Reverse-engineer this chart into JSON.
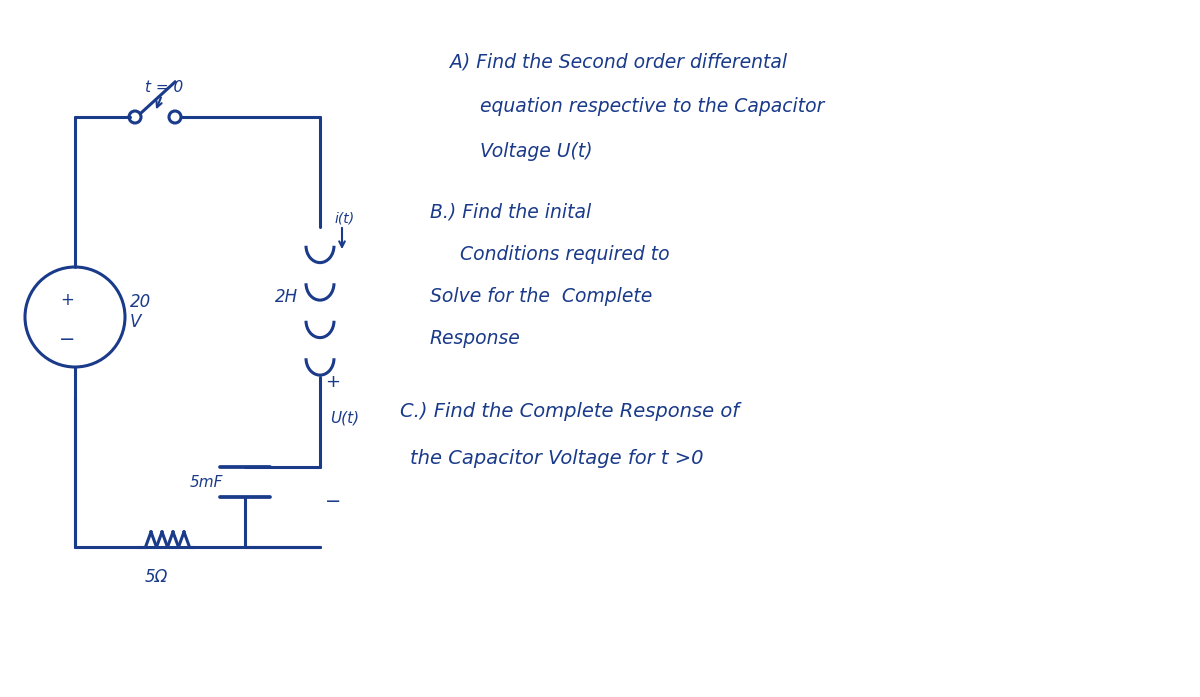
{
  "bg_color": "#ffffff",
  "ink_color": "#1a3a8a",
  "fig_width": 12.0,
  "fig_height": 6.97,
  "circuit": {
    "switch_label": "t = 0",
    "source_label": "20\nV",
    "resistor_label": "5Ω",
    "inductor_label": "2H",
    "capacitor_label": "5mF",
    "current_label": "i(t)",
    "voltage_label": "U(t)",
    "plus": "+",
    "minus": "−"
  },
  "text_A": "A) Find the Second order differental",
  "text_A2": "equation respective to the Capacitor",
  "text_A3": "Voltage U(t)",
  "text_B": "B.) Find the inital",
  "text_B2": "Conditions required to",
  "text_B3": "Solve for the  Complete",
  "text_B4": "Response",
  "text_C": "C.) Find the Complete Response of",
  "text_C2": "the Capacitor Voltage for t >0"
}
